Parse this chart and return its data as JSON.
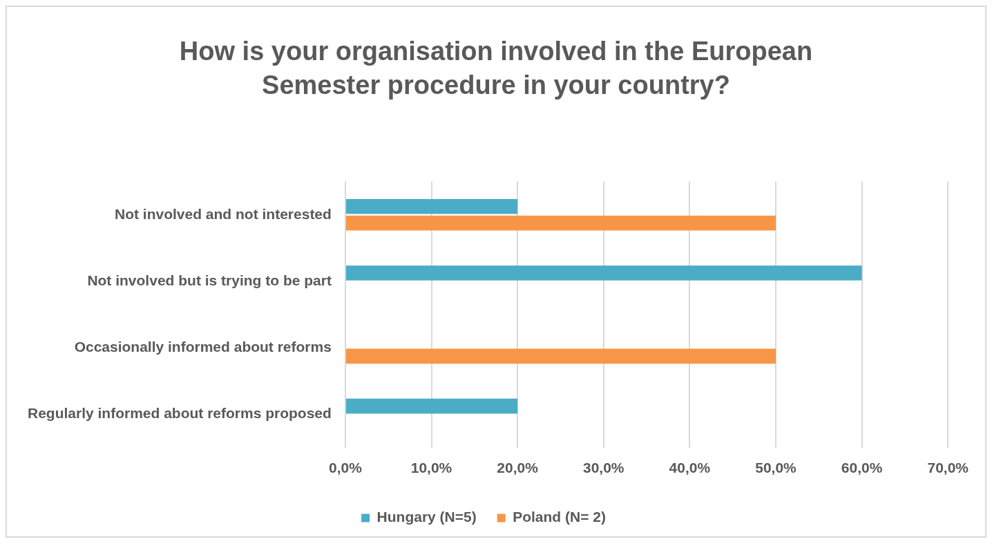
{
  "chart_data": {
    "type": "bar",
    "orientation": "horizontal",
    "title": "How is your organisation involved in the European Semester procedure in your country?",
    "categories": [
      "Not involved and not interested",
      "Not involved but is trying to be part",
      "Occasionally informed about reforms",
      "Regularly informed about reforms proposed"
    ],
    "series": [
      {
        "name": "Hungary (N=5)",
        "color": "#4bacc6",
        "values": [
          20,
          60,
          null,
          20
        ]
      },
      {
        "name": "Poland (N= 2)",
        "color": "#f79646",
        "values": [
          50,
          null,
          50,
          null
        ]
      }
    ],
    "xlim": [
      0,
      70
    ],
    "xticks": [
      {
        "value": 0,
        "label": "0,0%"
      },
      {
        "value": 10,
        "label": "10,0%"
      },
      {
        "value": 20,
        "label": "20,0%"
      },
      {
        "value": 30,
        "label": "30,0%"
      },
      {
        "value": 40,
        "label": "40,0%"
      },
      {
        "value": 50,
        "label": "50,0%"
      },
      {
        "value": 60,
        "label": "60,0%"
      },
      {
        "value": 70,
        "label": "70,0%"
      }
    ],
    "grid": "x",
    "legend": "bottom"
  }
}
